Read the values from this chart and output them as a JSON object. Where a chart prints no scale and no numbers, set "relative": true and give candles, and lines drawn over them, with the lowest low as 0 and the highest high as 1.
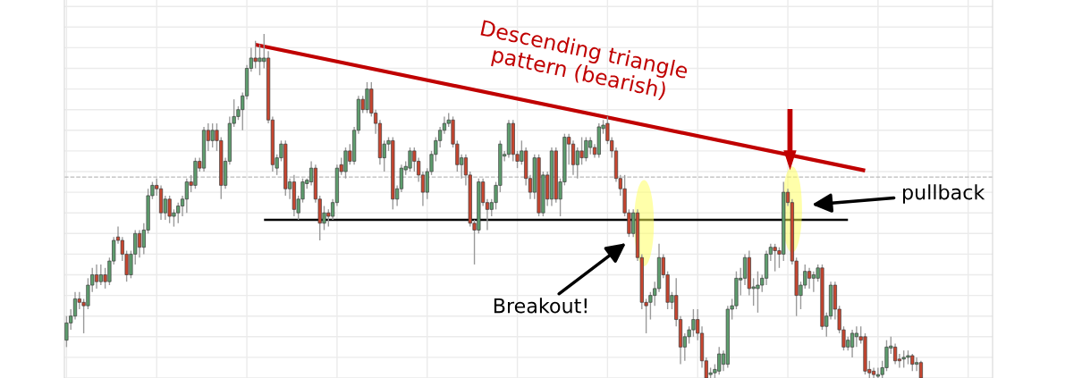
{
  "chart_data": {
    "type": "candlestick",
    "relative": true,
    "grid": true,
    "categories": [
      null,
      null,
      null,
      null,
      null,
      null,
      null,
      null,
      null,
      null,
      null,
      null,
      null,
      null,
      null,
      null,
      null,
      null,
      null,
      null,
      null,
      null,
      null,
      null,
      null,
      null,
      null,
      null,
      null,
      null,
      null,
      null,
      null,
      null,
      null,
      null,
      null,
      null,
      null,
      null,
      null,
      null,
      null,
      null,
      null,
      null,
      null,
      null,
      null,
      null,
      null,
      null,
      null,
      null,
      null,
      null,
      null,
      null,
      null,
      null,
      null,
      null,
      null,
      null,
      null,
      null,
      null,
      null,
      null,
      null,
      null,
      null,
      null,
      null,
      null,
      null,
      null,
      null,
      null,
      null,
      null,
      null,
      null,
      null,
      null,
      null,
      null,
      null,
      null,
      null,
      null,
      null,
      null,
      null,
      null,
      null,
      null,
      null,
      null,
      null,
      null,
      null,
      null,
      null,
      null,
      null,
      null,
      null,
      null,
      null,
      null,
      null,
      null,
      null,
      null,
      null,
      null,
      null,
      null,
      null,
      null,
      null,
      null,
      null,
      null,
      null,
      null,
      null,
      null,
      null,
      null,
      null,
      null,
      null,
      null,
      null,
      null,
      null,
      null,
      null,
      null,
      null,
      null,
      null,
      null,
      null,
      null,
      null,
      null,
      null,
      null,
      null,
      null,
      null,
      null,
      null,
      null,
      null,
      null,
      null,
      null,
      null,
      null,
      null,
      null,
      null,
      null,
      null,
      null,
      null,
      null,
      null,
      null,
      null,
      null,
      null,
      null,
      null,
      null,
      null,
      null,
      null,
      null,
      null,
      null,
      null,
      null,
      null,
      null,
      null,
      null,
      null,
      null,
      null,
      null,
      null,
      null,
      null,
      null,
      null
    ],
    "colors": [
      "#5e9e6e",
      "#5e9e6e",
      "#5e9e6e",
      "#c8452f",
      "#c8452f",
      "#5e9e6e",
      "#5e9e6e",
      "#c8452f",
      "#5e9e6e",
      "#c8452f",
      "#5e9e6e",
      "#5e9e6e",
      "#c8452f",
      "#c8452f",
      "#c8452f",
      "#5e9e6e",
      "#5e9e6e",
      "#c8452f",
      "#5e9e6e",
      "#5e9e6e",
      "#5e9e6e",
      "#c8452f",
      "#c8452f",
      "#5e9e6e",
      "#c8452f",
      "#5e9e6e",
      "#5e9e6e",
      "#5e9e6e",
      "#5e9e6e",
      "#c8452f",
      "#5e9e6e",
      "#c8452f",
      "#5e9e6e",
      "#c8452f",
      "#5e9e6e",
      "#c8452f",
      "#c8452f",
      "#5e9e6e",
      "#5e9e6e",
      "#5e9e6e",
      "#5e9e6e",
      "#5e9e6e",
      "#5e9e6e",
      "#5e9e6e",
      "#c8452f",
      "#5e9e6e",
      "#5e9e6e",
      "#c8452f",
      "#c8452f",
      "#5e9e6e",
      "#5e9e6e",
      "#c8452f",
      "#5e9e6e",
      "#c8452f",
      "#5e9e6e",
      "#5e9e6e",
      "#5e9e6e",
      "#5e9e6e",
      "#c8452f",
      "#c8452f",
      "#5e9e6e",
      "#c8452f",
      "#5e9e6e",
      "#5e9e6e",
      "#c8452f",
      "#5e9e6e",
      "#c8452f",
      "#5e9e6e",
      "#5e9e6e",
      "#c8452f",
      "#5e9e6e",
      "#c8452f",
      "#c8452f",
      "#c8452f",
      "#5e9e6e",
      "#5e9e6e",
      "#c8452f",
      "#5e9e6e",
      "#5e9e6e",
      "#5e9e6e",
      "#5e9e6e",
      "#c8452f",
      "#c8452f",
      "#c8452f",
      "#5e9e6e",
      "#5e9e6e",
      "#5e9e6e",
      "#5e9e6e",
      "#5e9e6e",
      "#5e9e6e",
      "#c8452f",
      "#c8452f",
      "#5e9e6e",
      "#c8452f",
      "#c8452f",
      "#c8452f",
      "#5e9e6e",
      "#c8452f",
      "#c8452f",
      "#5e9e6e",
      "#5e9e6e",
      "#5e9e6e",
      "#5e9e6e",
      "#5e9e6e",
      "#c8452f",
      "#c8452f",
      "#5e9e6e",
      "#c8452f",
      "#c8452f",
      "#5e9e6e",
      "#c8452f",
      "#5e9e6e",
      "#c8452f",
      "#5e9e6e",
      "#c8452f",
      "#5e9e6e",
      "#5e9e6e",
      "#c8452f",
      "#c8452f",
      "#5e9e6e",
      "#c8452f",
      "#5e9e6e",
      "#5e9e6e",
      "#c8452f",
      "#5e9e6e",
      "#5e9e6e",
      "#c8452f",
      "#c8452f",
      "#c8452f",
      "#c8452f",
      "#c8452f",
      "#c8452f",
      "#5e9e6e",
      "#c8452f",
      "#c8452f",
      "#c8452f",
      "#5e9e6e",
      "#5e9e6e",
      "#5e9e6e",
      "#c8452f",
      "#c8452f",
      "#5e9e6e",
      "#c8452f",
      "#c8452f",
      "#5e9e6e",
      "#5e9e6e",
      "#5e9e6e",
      "#c8452f",
      "#c8452f",
      "#c8452f",
      "#5e9e6e",
      "#5e9e6e",
      "#5e9e6e",
      "#5e9e6e",
      "#5e9e6e",
      "#5e9e6e",
      "#5e9e6e",
      "#5e9e6e",
      "#5e9e6e",
      "#c8452f",
      "#5e9e6e",
      "#5e9e6e",
      "#5e9e6e",
      "#5e9e6e",
      "#5e9e6e",
      "#c8452f",
      "#c8452f",
      "#5e9e6e",
      "#c8452f",
      "#c8452f",
      "#c8452f",
      "#5e9e6e",
      "#5e9e6e",
      "#c8452f",
      "#5e9e6e",
      "#5e9e6e",
      "#c8452f",
      "#5e9e6e",
      "#5e9e6e",
      "#c8452f",
      "#c8452f",
      "#c8452f",
      "#5e9e6e",
      "#5e9e6e",
      "#5e9e6e",
      "#c8452f",
      "#c8452f",
      "#c8452f",
      "#c8452f",
      "#5e9e6e",
      "#5e9e6e",
      "#5e9e6e",
      "#5e9e6e",
      "#c8452f",
      "#c8452f",
      "#5e9e6e",
      "#5e9e6e",
      "#c8452f",
      "#5e9e6e",
      "#c8452f"
    ],
    "ohlc": [
      [
        0.11,
        0.18,
        0.09,
        0.16
      ],
      [
        0.16,
        0.2,
        0.14,
        0.18
      ],
      [
        0.18,
        0.25,
        0.17,
        0.23
      ],
      [
        0.23,
        0.25,
        0.2,
        0.22
      ],
      [
        0.22,
        0.23,
        0.13,
        0.21
      ],
      [
        0.21,
        0.29,
        0.2,
        0.27
      ],
      [
        0.27,
        0.32,
        0.25,
        0.3
      ],
      [
        0.3,
        0.33,
        0.26,
        0.28
      ],
      [
        0.28,
        0.33,
        0.27,
        0.3
      ],
      [
        0.3,
        0.32,
        0.26,
        0.28
      ],
      [
        0.28,
        0.35,
        0.27,
        0.34
      ],
      [
        0.34,
        0.41,
        0.33,
        0.4
      ],
      [
        0.41,
        0.44,
        0.39,
        0.4
      ],
      [
        0.4,
        0.41,
        0.34,
        0.36
      ],
      [
        0.36,
        0.37,
        0.28,
        0.3
      ],
      [
        0.3,
        0.37,
        0.29,
        0.36
      ],
      [
        0.36,
        0.43,
        0.33,
        0.42
      ],
      [
        0.42,
        0.43,
        0.35,
        0.38
      ],
      [
        0.38,
        0.45,
        0.36,
        0.43
      ],
      [
        0.43,
        0.55,
        0.42,
        0.53
      ],
      [
        0.53,
        0.57,
        0.52,
        0.56
      ],
      [
        0.56,
        0.58,
        0.53,
        0.55
      ],
      [
        0.55,
        0.56,
        0.46,
        0.48
      ],
      [
        0.48,
        0.53,
        0.46,
        0.52
      ],
      [
        0.52,
        0.53,
        0.45,
        0.47
      ],
      [
        0.47,
        0.49,
        0.44,
        0.48
      ],
      [
        0.48,
        0.51,
        0.45,
        0.5
      ],
      [
        0.5,
        0.53,
        0.47,
        0.52
      ],
      [
        0.52,
        0.58,
        0.48,
        0.57
      ],
      [
        0.57,
        0.59,
        0.54,
        0.56
      ],
      [
        0.56,
        0.64,
        0.55,
        0.63
      ],
      [
        0.63,
        0.64,
        0.6,
        0.61
      ],
      [
        0.61,
        0.73,
        0.6,
        0.72
      ],
      [
        0.72,
        0.74,
        0.66,
        0.69
      ],
      [
        0.69,
        0.74,
        0.67,
        0.72
      ],
      [
        0.72,
        0.74,
        0.66,
        0.69
      ],
      [
        0.69,
        0.7,
        0.52,
        0.56
      ],
      [
        0.56,
        0.64,
        0.55,
        0.63
      ],
      [
        0.63,
        0.76,
        0.62,
        0.74
      ],
      [
        0.74,
        0.81,
        0.73,
        0.76
      ],
      [
        0.76,
        0.79,
        0.75,
        0.78
      ],
      [
        0.78,
        0.83,
        0.72,
        0.82
      ],
      [
        0.82,
        0.91,
        0.81,
        0.9
      ],
      [
        0.9,
        0.96,
        0.89,
        0.93
      ],
      [
        0.93,
        0.98,
        0.9,
        0.92
      ],
      [
        0.92,
        0.97,
        0.88,
        0.93
      ],
      [
        0.92,
        1.0,
        0.9,
        0.93
      ],
      [
        0.93,
        0.95,
        0.74,
        0.75
      ],
      [
        0.75,
        0.76,
        0.6,
        0.62
      ],
      [
        0.61,
        0.65,
        0.59,
        0.64
      ],
      [
        0.64,
        0.69,
        0.63,
        0.68
      ],
      [
        0.68,
        0.69,
        0.53,
        0.55
      ],
      [
        0.55,
        0.58,
        0.52,
        0.57
      ],
      [
        0.57,
        0.59,
        0.47,
        0.49
      ],
      [
        0.48,
        0.53,
        0.46,
        0.52
      ],
      [
        0.52,
        0.58,
        0.51,
        0.57
      ],
      [
        0.565,
        0.58,
        0.55,
        0.575
      ],
      [
        0.57,
        0.63,
        0.56,
        0.61
      ],
      [
        0.61,
        0.62,
        0.51,
        0.52
      ],
      [
        0.52,
        0.53,
        0.4,
        0.45
      ],
      [
        0.45,
        0.5,
        0.43,
        0.48
      ],
      [
        0.48,
        0.49,
        0.44,
        0.47
      ],
      [
        0.47,
        0.52,
        0.46,
        0.51
      ],
      [
        0.51,
        0.62,
        0.5,
        0.61
      ],
      [
        0.62,
        0.64,
        0.59,
        0.6
      ],
      [
        0.6,
        0.67,
        0.58,
        0.66
      ],
      [
        0.66,
        0.68,
        0.62,
        0.63
      ],
      [
        0.63,
        0.73,
        0.62,
        0.72
      ],
      [
        0.72,
        0.82,
        0.71,
        0.81
      ],
      [
        0.81,
        0.82,
        0.77,
        0.78
      ],
      [
        0.78,
        0.86,
        0.77,
        0.84
      ],
      [
        0.84,
        0.86,
        0.76,
        0.77
      ],
      [
        0.77,
        0.78,
        0.71,
        0.74
      ],
      [
        0.74,
        0.75,
        0.62,
        0.64
      ],
      [
        0.64,
        0.69,
        0.6,
        0.68
      ],
      [
        0.68,
        0.7,
        0.66,
        0.69
      ],
      [
        0.69,
        0.7,
        0.49,
        0.52
      ],
      [
        0.52,
        0.56,
        0.5,
        0.55
      ],
      [
        0.55,
        0.62,
        0.54,
        0.61
      ],
      [
        0.605,
        0.63,
        0.59,
        0.615
      ],
      [
        0.61,
        0.67,
        0.6,
        0.66
      ],
      [
        0.66,
        0.67,
        0.6,
        0.63
      ],
      [
        0.63,
        0.64,
        0.57,
        0.59
      ],
      [
        0.59,
        0.6,
        0.5,
        0.54
      ],
      [
        0.54,
        0.61,
        0.52,
        0.6
      ],
      [
        0.6,
        0.66,
        0.59,
        0.65
      ],
      [
        0.65,
        0.7,
        0.63,
        0.69
      ],
      [
        0.69,
        0.73,
        0.67,
        0.72
      ],
      [
        0.72,
        0.76,
        0.71,
        0.74
      ],
      [
        0.74,
        0.77,
        0.73,
        0.75
      ],
      [
        0.75,
        0.76,
        0.67,
        0.68
      ],
      [
        0.68,
        0.69,
        0.6,
        0.62
      ],
      [
        0.62,
        0.65,
        0.58,
        0.64
      ],
      [
        0.64,
        0.65,
        0.56,
        0.59
      ],
      [
        0.59,
        0.6,
        0.44,
        0.45
      ],
      [
        0.45,
        0.46,
        0.33,
        0.43
      ],
      [
        0.43,
        0.58,
        0.42,
        0.57
      ],
      [
        0.57,
        0.58,
        0.5,
        0.51
      ],
      [
        0.51,
        0.52,
        0.43,
        0.49
      ],
      [
        0.49,
        0.52,
        0.47,
        0.51
      ],
      [
        0.51,
        0.57,
        0.49,
        0.56
      ],
      [
        0.56,
        0.69,
        0.54,
        0.68
      ],
      [
        0.645,
        0.66,
        0.63,
        0.65
      ],
      [
        0.65,
        0.75,
        0.64,
        0.74
      ],
      [
        0.74,
        0.75,
        0.63,
        0.65
      ],
      [
        0.65,
        0.66,
        0.61,
        0.63
      ],
      [
        0.63,
        0.69,
        0.62,
        0.66
      ],
      [
        0.66,
        0.67,
        0.56,
        0.58
      ],
      [
        0.58,
        0.59,
        0.52,
        0.54
      ],
      [
        0.54,
        0.65,
        0.52,
        0.64
      ],
      [
        0.64,
        0.65,
        0.47,
        0.48
      ],
      [
        0.48,
        0.6,
        0.47,
        0.59
      ],
      [
        0.59,
        0.6,
        0.5,
        0.52
      ],
      [
        0.52,
        0.67,
        0.5,
        0.66
      ],
      [
        0.66,
        0.67,
        0.51,
        0.52
      ],
      [
        0.52,
        0.58,
        0.47,
        0.57
      ],
      [
        0.57,
        0.71,
        0.56,
        0.7
      ],
      [
        0.7,
        0.71,
        0.62,
        0.68
      ],
      [
        0.68,
        0.69,
        0.59,
        0.62
      ],
      [
        0.62,
        0.67,
        0.58,
        0.66
      ],
      [
        0.66,
        0.7,
        0.62,
        0.64
      ],
      [
        0.64,
        0.7,
        0.63,
        0.69
      ],
      [
        0.67,
        0.7,
        0.65,
        0.69
      ],
      [
        0.67,
        0.68,
        0.64,
        0.65
      ],
      [
        0.65,
        0.74,
        0.64,
        0.73
      ],
      [
        0.725,
        0.75,
        0.71,
        0.735
      ],
      [
        0.74,
        0.76,
        0.68,
        0.69
      ],
      [
        0.69,
        0.7,
        0.64,
        0.66
      ],
      [
        0.66,
        0.67,
        0.57,
        0.58
      ],
      [
        0.58,
        0.59,
        0.53,
        0.55
      ],
      [
        0.55,
        0.59,
        0.47,
        0.48
      ],
      [
        0.48,
        0.49,
        0.41,
        0.42
      ],
      [
        0.42,
        0.49,
        0.41,
        0.48
      ],
      [
        0.48,
        0.49,
        0.34,
        0.35
      ],
      [
        0.35,
        0.36,
        0.2,
        0.22
      ],
      [
        0.22,
        0.23,
        0.13,
        0.21
      ],
      [
        0.22,
        0.25,
        0.17,
        0.24
      ],
      [
        0.24,
        0.28,
        0.21,
        0.26
      ],
      [
        0.26,
        0.39,
        0.25,
        0.35
      ],
      [
        0.35,
        0.36,
        0.29,
        0.3
      ],
      [
        0.3,
        0.31,
        0.2,
        0.22
      ],
      [
        0.22,
        0.25,
        0.2,
        0.24
      ],
      [
        0.24,
        0.29,
        0.15,
        0.17
      ],
      [
        0.17,
        0.18,
        0.04,
        0.09
      ],
      [
        0.09,
        0.13,
        0.05,
        0.12
      ],
      [
        0.12,
        0.15,
        0.1,
        0.14
      ],
      [
        0.14,
        0.2,
        0.12,
        0.17
      ],
      [
        0.17,
        0.2,
        0.11,
        0.13
      ],
      [
        0.13,
        0.15,
        0.03,
        0.05
      ],
      [
        0.05,
        0.06,
        0.0,
        0.0
      ],
      [
        0.01,
        0.03,
        0.0,
        0.015
      ],
      [
        0.015,
        0.04,
        0.0,
        0.025
      ],
      [
        0.02,
        0.09,
        0.01,
        0.07
      ],
      [
        0.04,
        0.08,
        0.02,
        0.07
      ],
      [
        0.04,
        0.21,
        0.03,
        0.2
      ],
      [
        0.2,
        0.23,
        0.17,
        0.21
      ],
      [
        0.21,
        0.31,
        0.2,
        0.29
      ],
      [
        0.285,
        0.32,
        0.24,
        0.29
      ],
      [
        0.29,
        0.36,
        0.27,
        0.35
      ],
      [
        0.35,
        0.37,
        0.24,
        0.26
      ],
      [
        0.26,
        0.29,
        0.21,
        0.265
      ],
      [
        0.26,
        0.31,
        0.19,
        0.27
      ],
      [
        0.27,
        0.3,
        0.25,
        0.29
      ],
      [
        0.29,
        0.37,
        0.27,
        0.36
      ],
      [
        0.36,
        0.39,
        0.34,
        0.38
      ],
      [
        0.38,
        0.39,
        0.31,
        0.37
      ],
      [
        0.37,
        0.38,
        0.32,
        0.36
      ],
      [
        0.36,
        0.57,
        0.34,
        0.54
      ],
      [
        0.54,
        0.55,
        0.5,
        0.51
      ],
      [
        0.51,
        0.52,
        0.33,
        0.34
      ],
      [
        0.34,
        0.35,
        0.18,
        0.24
      ],
      [
        0.24,
        0.28,
        0.2,
        0.27
      ],
      [
        0.27,
        0.33,
        0.26,
        0.31
      ],
      [
        0.31,
        0.32,
        0.26,
        0.29
      ],
      [
        0.29,
        0.31,
        0.25,
        0.3
      ],
      [
        0.29,
        0.33,
        0.28,
        0.32
      ],
      [
        0.32,
        0.33,
        0.14,
        0.15
      ],
      [
        0.15,
        0.19,
        0.12,
        0.18
      ],
      [
        0.18,
        0.28,
        0.17,
        0.27
      ],
      [
        0.27,
        0.28,
        0.17,
        0.2
      ],
      [
        0.2,
        0.21,
        0.13,
        0.14
      ],
      [
        0.14,
        0.15,
        0.08,
        0.09
      ],
      [
        0.09,
        0.12,
        0.08,
        0.11
      ],
      [
        0.09,
        0.14,
        0.06,
        0.13
      ],
      [
        0.12,
        0.15,
        0.09,
        0.13
      ],
      [
        0.12,
        0.15,
        0.1,
        0.11
      ],
      [
        0.12,
        0.13,
        0.01,
        0.02
      ],
      [
        0.025,
        0.05,
        0.0,
        0.015
      ],
      [
        0.02,
        0.03,
        0.0,
        0.01
      ],
      [
        0.005,
        0.03,
        0.0,
        0.01
      ],
      [
        0.01,
        0.05,
        0.0,
        0.03
      ],
      [
        0.03,
        0.11,
        0.02,
        0.09
      ],
      [
        0.087,
        0.12,
        0.07,
        0.093
      ],
      [
        0.09,
        0.1,
        0.04,
        0.05
      ],
      [
        0.055,
        0.07,
        0.03,
        0.05
      ],
      [
        0.055,
        0.08,
        0.03,
        0.06
      ],
      [
        0.06,
        0.08,
        0.04,
        0.065
      ],
      [
        0.065,
        0.07,
        0.02,
        0.04
      ],
      [
        0.04,
        0.06,
        0.02,
        0.045
      ],
      [
        0.045,
        0.05,
        0.0,
        0.0
      ]
    ],
    "series": [
      {
        "type": "line",
        "color": "#c00000",
        "values": [
          null,
          null,
          null,
          null,
          null,
          null,
          null,
          null,
          null,
          null,
          null,
          null,
          null,
          null,
          null,
          null,
          null,
          null,
          null,
          null,
          null,
          null,
          null,
          null,
          null,
          null,
          null,
          null,
          null,
          null,
          null,
          null,
          null,
          null,
          null,
          null,
          null,
          null,
          null,
          null,
          null,
          null,
          null,
          null,
          0.969,
          null,
          null,
          null,
          null,
          null,
          null,
          null,
          null,
          null,
          null,
          null,
          null,
          null,
          null,
          null,
          null,
          null,
          null,
          null,
          null,
          null,
          null,
          null,
          null,
          null,
          null,
          null,
          null,
          null,
          null,
          null,
          null,
          null,
          null,
          null,
          null,
          null,
          null,
          null,
          null,
          null,
          null,
          null,
          null,
          null,
          null,
          null,
          null,
          null,
          null,
          null,
          null,
          null,
          null,
          null,
          null,
          null,
          null,
          null,
          null,
          null,
          null,
          null,
          null,
          null,
          null,
          null,
          null,
          null,
          null,
          null,
          null,
          null,
          null,
          null,
          null,
          null,
          null,
          null,
          null,
          null,
          null,
          null,
          null,
          null,
          null,
          null,
          null,
          null,
          null,
          null,
          null,
          null,
          null,
          null,
          null,
          null,
          null,
          null,
          null,
          null,
          null,
          null,
          null,
          null,
          null,
          null,
          null,
          null,
          null,
          null,
          null,
          null,
          null,
          null,
          null,
          null,
          null,
          null,
          null,
          null,
          null,
          null,
          null,
          null,
          null,
          null,
          null,
          null,
          null,
          null,
          null,
          null,
          null,
          null,
          null,
          null,
          null,
          null,
          null,
          null,
          0.603,
          null,
          null,
          null,
          null,
          null,
          null,
          null,
          null,
          null,
          null,
          null,
          null,
          null
        ]
      },
      {
        "type": "line",
        "color": "#000000",
        "values": [
          null,
          null,
          null,
          null,
          null,
          null,
          null,
          null,
          null,
          null,
          null,
          null,
          null,
          null,
          null,
          null,
          null,
          null,
          null,
          null,
          null,
          null,
          null,
          null,
          null,
          null,
          null,
          null,
          null,
          null,
          null,
          null,
          null,
          null,
          null,
          null,
          null,
          null,
          null,
          null,
          null,
          null,
          null,
          null,
          null,
          null,
          0.46,
          null,
          null,
          null,
          null,
          null,
          null,
          null,
          null,
          null,
          null,
          null,
          null,
          null,
          null,
          null,
          null,
          null,
          null,
          null,
          null,
          null,
          null,
          null,
          null,
          null,
          null,
          null,
          null,
          null,
          null,
          null,
          null,
          null,
          null,
          null,
          null,
          null,
          null,
          null,
          null,
          null,
          null,
          null,
          null,
          null,
          null,
          null,
          null,
          null,
          null,
          null,
          null,
          null,
          null,
          null,
          null,
          null,
          null,
          null,
          null,
          null,
          null,
          null,
          null,
          null,
          null,
          null,
          null,
          null,
          null,
          null,
          null,
          null,
          null,
          null,
          null,
          null,
          null,
          null,
          null,
          null,
          null,
          null,
          null,
          null,
          null,
          null,
          null,
          null,
          null,
          null,
          null,
          null,
          null,
          null,
          null,
          null,
          null,
          null,
          null,
          null,
          null,
          null,
          null,
          null,
          null,
          null,
          null,
          null,
          null,
          null,
          null,
          null,
          null,
          null,
          null,
          null,
          null,
          null,
          null,
          null,
          null,
          null,
          null,
          null,
          null,
          null,
          null,
          null,
          null,
          null,
          null,
          null,
          null,
          null,
          0.46,
          null,
          null,
          null,
          null,
          null,
          null,
          null,
          null,
          null,
          null,
          null,
          null,
          null,
          null,
          null,
          null,
          null
        ]
      }
    ],
    "ref_lines": [
      {
        "axis": "y",
        "value": 0.584,
        "color": "#bbbbbb",
        "line_style": "dashed"
      }
    ],
    "annotations": [
      "Descending triangle\npattern (bearish)",
      "Breakout!",
      "pullback"
    ]
  }
}
